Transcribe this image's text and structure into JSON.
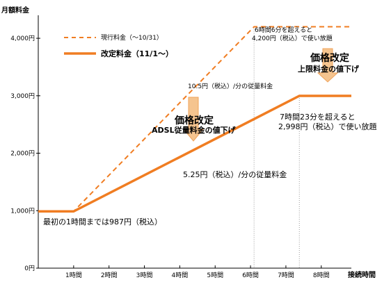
{
  "chart_data": {
    "type": "line",
    "ylabel": "月額料金",
    "xlabel": "接続時間",
    "xlim": [
      0,
      8.85
    ],
    "ylim": [
      0,
      4400
    ],
    "x_ticks": [
      {
        "v": 1,
        "label": "1時間"
      },
      {
        "v": 2,
        "label": "2時間"
      },
      {
        "v": 3,
        "label": "3時間"
      },
      {
        "v": 4,
        "label": "4時間"
      },
      {
        "v": 5,
        "label": "5時間"
      },
      {
        "v": 6,
        "label": "6時間"
      },
      {
        "v": 7,
        "label": "7時間"
      },
      {
        "v": 8,
        "label": "8時間"
      }
    ],
    "y_ticks": [
      {
        "v": 0,
        "label": "0円"
      },
      {
        "v": 1000,
        "label": "1,000円"
      },
      {
        "v": 2000,
        "label": "2,000円"
      },
      {
        "v": 3000,
        "label": "3,000円"
      },
      {
        "v": 4000,
        "label": "4,000円"
      }
    ],
    "series": [
      {
        "name": "現行料金（～10/31）",
        "style": "dashed",
        "color": "#f07d22",
        "points": [
          [
            0,
            987
          ],
          [
            1,
            987
          ],
          [
            6.1,
            4200
          ],
          [
            8.85,
            4200
          ]
        ]
      },
      {
        "name": "改定料金（11/1～）",
        "style": "solid",
        "color": "#f07d22",
        "points": [
          [
            0,
            987
          ],
          [
            1,
            987
          ],
          [
            7.38,
            2998
          ],
          [
            8.85,
            2998
          ]
        ]
      }
    ],
    "annotations": {
      "first_hour": "最初の1時間までは987円（税込）",
      "old_rate": "10.5円（税込）/分の従量料金",
      "new_rate": "5.25円（税込）/分の従量料金",
      "old_cap_line1": "6時間6分を超えると",
      "old_cap_line2": "4,200円（税込）で使い放題",
      "new_cap_line1": "7時間23分を超えると",
      "new_cap_line2": "2,998円（税込）で使い放題",
      "callout1_title": "価格改定",
      "callout1_sub": "ADSL従量料金の値下げ",
      "callout2_title": "価格改定",
      "callout2_sub": "上限料金の値下げ"
    },
    "colors": {
      "line": "#f07d22",
      "arrow_fill": "#f5c48f",
      "arrow_stroke": "#f0a35a",
      "axis": "#000000",
      "grid": "#999999"
    }
  }
}
